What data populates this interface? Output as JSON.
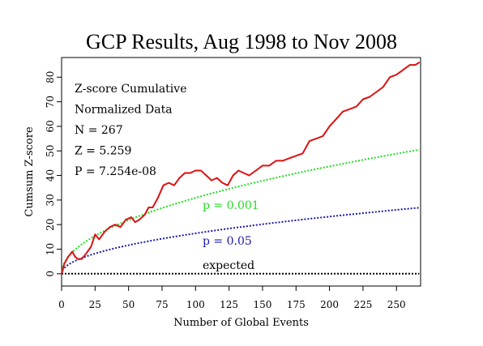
{
  "chart_data": {
    "type": "line",
    "title": "GCP Results, Aug 1998 to Nov 2008",
    "xlabel": "Number of Global Events",
    "ylabel": "Cumsum Z-score",
    "xlim": [
      0,
      268
    ],
    "ylim": [
      -5,
      88
    ],
    "xticks": [
      0,
      25,
      50,
      75,
      100,
      125,
      150,
      175,
      200,
      225,
      250
    ],
    "yticks": [
      0,
      10,
      20,
      30,
      40,
      50,
      60,
      70,
      80
    ],
    "grid": false,
    "stats": [
      "Z-score Cumulative",
      "Normalized Data",
      "N = 267",
      "Z = 5.259",
      "P = 7.254e-08"
    ],
    "reference_lines": [
      {
        "label": "p = 0.001",
        "formula": "3.09*sqrt(n)",
        "color": "#22dd22"
      },
      {
        "label": "p = 0.05",
        "formula": "1.645*sqrt(n)",
        "color": "#1a1aaa"
      },
      {
        "label": "expected",
        "formula": "0",
        "color": "#000000"
      }
    ],
    "series": [
      {
        "color": "#dd1111",
        "x": [
          0,
          2,
          5,
          8,
          10,
          12,
          15,
          18,
          22,
          25,
          28,
          32,
          36,
          40,
          44,
          48,
          52,
          55,
          58,
          62,
          65,
          68,
          72,
          76,
          80,
          84,
          88,
          92,
          96,
          100,
          104,
          108,
          112,
          116,
          120,
          124,
          128,
          132,
          136,
          140,
          145,
          150,
          155,
          160,
          165,
          170,
          175,
          180,
          185,
          190,
          195,
          200,
          205,
          210,
          215,
          220,
          225,
          230,
          235,
          240,
          245,
          250,
          255,
          260,
          264,
          267
        ],
        "y": [
          0,
          4,
          7,
          9,
          7,
          6,
          6,
          8,
          11,
          16,
          14,
          17,
          19,
          20,
          19,
          22,
          23,
          21,
          22,
          24,
          27,
          27,
          31,
          36,
          37,
          36,
          39,
          41,
          41,
          42,
          42,
          40,
          38,
          39,
          37,
          36,
          40,
          42,
          41,
          40,
          42,
          44,
          44,
          46,
          46,
          47,
          48,
          49,
          54,
          55,
          56,
          60,
          63,
          66,
          67,
          68,
          71,
          72,
          74,
          76,
          80,
          81,
          83,
          85,
          85,
          86
        ]
      }
    ]
  }
}
